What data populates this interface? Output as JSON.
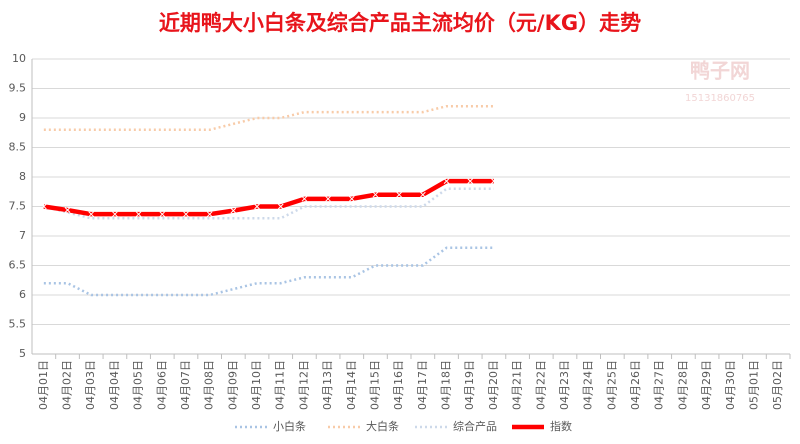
{
  "chart_data": {
    "type": "line",
    "title": "近期鸭大小白条及综合产品主流均价（元/KG）走势",
    "watermark": [
      "鸭子网",
      "15131860765"
    ],
    "categories": [
      "04月01日",
      "04月02日",
      "04月03日",
      "04月04日",
      "04月05日",
      "04月06日",
      "04月07日",
      "04月08日",
      "04月09日",
      "04月10日",
      "04月11日",
      "04月12日",
      "04月13日",
      "04月14日",
      "04月15日",
      "04月16日",
      "04月17日",
      "04月18日",
      "04月19日",
      "04月20日",
      "04月21日",
      "04月22日",
      "04月23日",
      "04月24日",
      "04月25日",
      "04月26日",
      "04月27日",
      "04月28日",
      "04月29日",
      "04月30日",
      "05月01日",
      "05月02日"
    ],
    "series": [
      {
        "name": "小白条",
        "color": "#a9c4e4",
        "style": "dotted",
        "width": 2.5,
        "values": [
          6.2,
          6.2,
          6.0,
          6.0,
          6.0,
          6.0,
          6.0,
          6.0,
          6.1,
          6.2,
          6.2,
          6.3,
          6.3,
          6.3,
          6.5,
          6.5,
          6.5,
          6.8,
          6.8,
          6.8,
          null,
          null,
          null,
          null,
          null,
          null,
          null,
          null,
          null,
          null,
          null,
          null
        ]
      },
      {
        "name": "大白条",
        "color": "#f8cba8",
        "style": "dotted",
        "width": 2.5,
        "values": [
          8.8,
          8.8,
          8.8,
          8.8,
          8.8,
          8.8,
          8.8,
          8.8,
          8.9,
          9.0,
          9.0,
          9.1,
          9.1,
          9.1,
          9.1,
          9.1,
          9.1,
          9.2,
          9.2,
          9.2,
          null,
          null,
          null,
          null,
          null,
          null,
          null,
          null,
          null,
          null,
          null,
          null
        ]
      },
      {
        "name": "综合产品",
        "color": "#cdd9ea",
        "style": "dotted",
        "width": 2.5,
        "values": [
          7.5,
          7.4,
          7.3,
          7.3,
          7.3,
          7.3,
          7.3,
          7.3,
          7.3,
          7.3,
          7.3,
          7.5,
          7.5,
          7.5,
          7.5,
          7.5,
          7.5,
          7.8,
          7.8,
          7.8,
          null,
          null,
          null,
          null,
          null,
          null,
          null,
          null,
          null,
          null,
          null,
          null
        ]
      },
      {
        "name": "指数",
        "color": "#ff0000",
        "style": "solid",
        "width": 4.5,
        "marker": "x",
        "values": [
          7.5,
          7.44,
          7.37,
          7.37,
          7.37,
          7.37,
          7.37,
          7.37,
          7.43,
          7.5,
          7.5,
          7.63,
          7.63,
          7.63,
          7.7,
          7.7,
          7.7,
          7.93,
          7.93,
          7.93,
          null,
          null,
          null,
          null,
          null,
          null,
          null,
          null,
          null,
          null,
          null,
          null
        ]
      }
    ],
    "ylim": [
      5,
      10
    ],
    "yticks": [
      5,
      5.5,
      6,
      6.5,
      7,
      7.5,
      8,
      8.5,
      9,
      9.5,
      10
    ],
    "grid": true,
    "legend": "bottom"
  }
}
